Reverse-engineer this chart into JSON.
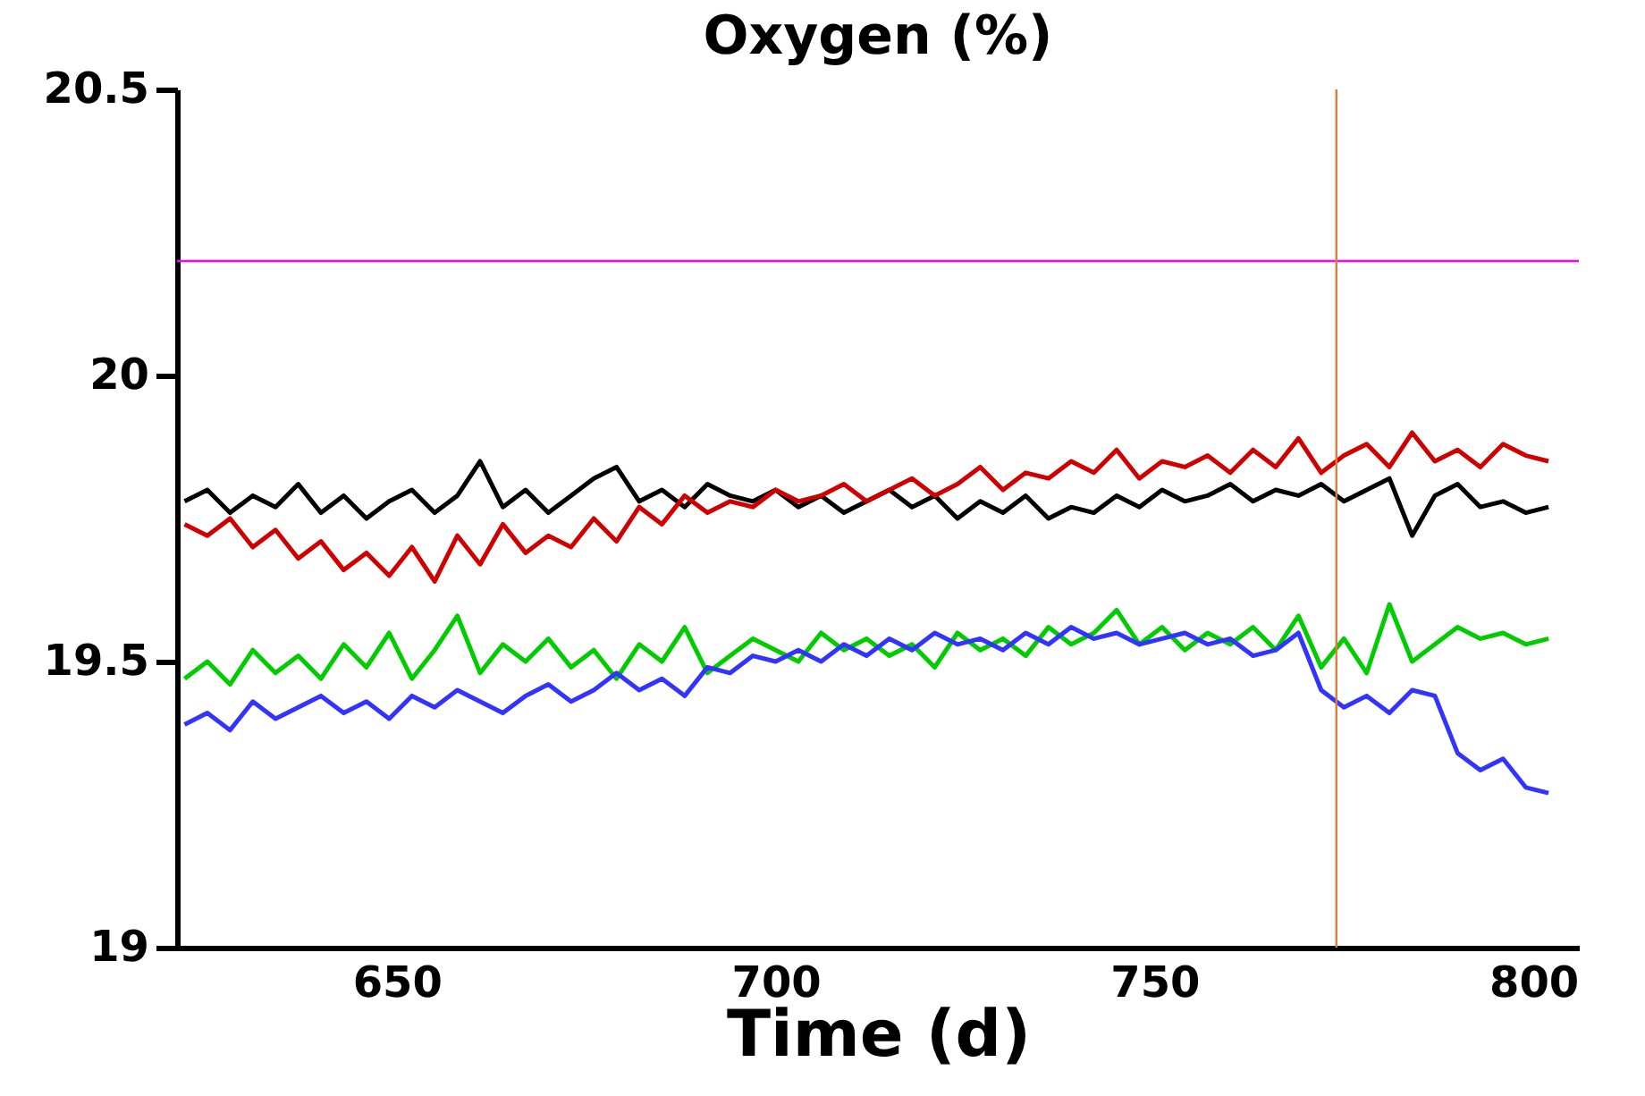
{
  "chart_data": {
    "type": "line",
    "title": "Oxygen (%)",
    "xlabel": "Time (d)",
    "x": [
      622,
      625,
      628,
      631,
      634,
      637,
      640,
      643,
      646,
      649,
      652,
      655,
      658,
      661,
      664,
      667,
      670,
      673,
      676,
      679,
      682,
      685,
      688,
      691,
      694,
      697,
      700,
      703,
      706,
      709,
      712,
      715,
      718,
      721,
      724,
      727,
      730,
      733,
      736,
      739,
      742,
      745,
      748,
      751,
      754,
      757,
      760,
      763,
      766,
      769,
      772,
      775,
      778,
      781,
      784,
      787,
      790,
      793,
      796,
      799,
      802
    ],
    "series": [
      {
        "color": "#000000",
        "values": [
          19.78,
          19.8,
          19.76,
          19.79,
          19.77,
          19.81,
          19.76,
          19.79,
          19.75,
          19.78,
          19.8,
          19.76,
          19.79,
          19.85,
          19.77,
          19.8,
          19.76,
          19.79,
          19.82,
          19.84,
          19.78,
          19.8,
          19.77,
          19.81,
          19.79,
          19.78,
          19.8,
          19.77,
          19.79,
          19.76,
          19.78,
          19.8,
          19.77,
          19.79,
          19.75,
          19.78,
          19.76,
          19.79,
          19.75,
          19.77,
          19.76,
          19.79,
          19.77,
          19.8,
          19.78,
          19.79,
          19.81,
          19.78,
          19.8,
          19.79,
          19.81,
          19.78,
          19.8,
          19.82,
          19.72,
          19.79,
          19.81,
          19.77,
          19.78,
          19.76,
          19.77
        ]
      },
      {
        "color": "#d00000",
        "values": [
          19.74,
          19.72,
          19.75,
          19.7,
          19.73,
          19.68,
          19.71,
          19.66,
          19.69,
          19.65,
          19.7,
          19.64,
          19.72,
          19.67,
          19.74,
          19.69,
          19.72,
          19.7,
          19.75,
          19.71,
          19.77,
          19.74,
          19.79,
          19.76,
          19.78,
          19.77,
          19.8,
          19.78,
          19.79,
          19.81,
          19.78,
          19.8,
          19.82,
          19.79,
          19.81,
          19.84,
          19.8,
          19.83,
          19.82,
          19.85,
          19.83,
          19.87,
          19.82,
          19.85,
          19.84,
          19.86,
          19.83,
          19.87,
          19.84,
          19.89,
          19.83,
          19.86,
          19.88,
          19.84,
          19.9,
          19.85,
          19.87,
          19.84,
          19.88,
          19.86,
          19.85
        ]
      },
      {
        "color": "#00cc00",
        "values": [
          19.47,
          19.5,
          19.46,
          19.52,
          19.48,
          19.51,
          19.47,
          19.53,
          19.49,
          19.55,
          19.47,
          19.52,
          19.58,
          19.48,
          19.53,
          19.5,
          19.54,
          19.49,
          19.52,
          19.47,
          19.53,
          19.5,
          19.56,
          19.48,
          19.51,
          19.54,
          19.52,
          19.5,
          19.55,
          19.52,
          19.54,
          19.51,
          19.53,
          19.49,
          19.55,
          19.52,
          19.54,
          19.51,
          19.56,
          19.53,
          19.55,
          19.59,
          19.53,
          19.56,
          19.52,
          19.55,
          19.53,
          19.56,
          19.52,
          19.58,
          19.49,
          19.54,
          19.48,
          19.6,
          19.5,
          19.53,
          19.56,
          19.54,
          19.55,
          19.53,
          19.54
        ]
      },
      {
        "color": "#3333ff",
        "values": [
          19.39,
          19.41,
          19.38,
          19.43,
          19.4,
          19.42,
          19.44,
          19.41,
          19.43,
          19.4,
          19.44,
          19.42,
          19.45,
          19.43,
          19.41,
          19.44,
          19.46,
          19.43,
          19.45,
          19.48,
          19.45,
          19.47,
          19.44,
          19.49,
          19.48,
          19.51,
          19.5,
          19.52,
          19.5,
          19.53,
          19.51,
          19.54,
          19.52,
          19.55,
          19.53,
          19.54,
          19.52,
          19.55,
          19.53,
          19.56,
          19.54,
          19.55,
          19.53,
          19.54,
          19.55,
          19.53,
          19.54,
          19.51,
          19.52,
          19.55,
          19.45,
          19.42,
          19.44,
          19.41,
          19.45,
          19.44,
          19.34,
          19.31,
          19.33,
          19.28,
          19.27
        ]
      }
    ],
    "ref_lines": [
      {
        "axis": "y",
        "value": 20.2,
        "color": "#ff00ff"
      },
      {
        "axis": "x",
        "value": 774,
        "color": "#e07b39"
      }
    ],
    "xlim": [
      621,
      806
    ],
    "xticks": [
      650,
      700,
      750,
      800
    ],
    "ylim": [
      19,
      20.5
    ],
    "yticks": [
      19,
      19.5,
      20,
      20.5
    ],
    "grid": false,
    "marker": "none",
    "line_style": "solid"
  }
}
